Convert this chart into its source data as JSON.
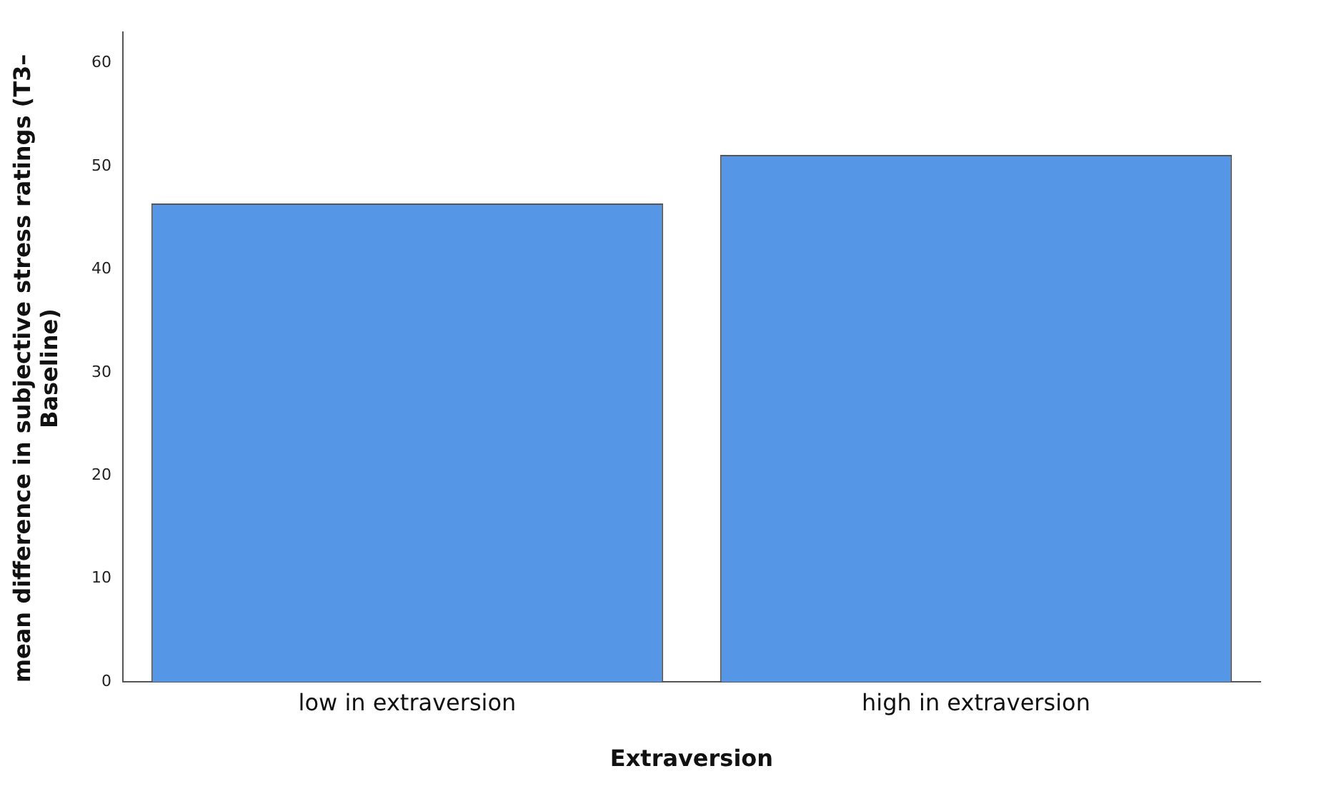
{
  "chart_data": {
    "type": "bar",
    "xlabel": "Extraversion",
    "ylabel": "mean difference in subjective stress ratings (T3–Baseline)",
    "categories": [
      "low in extraversion",
      "high in extraversion"
    ],
    "values": [
      46.4,
      51.1
    ],
    "color": "#5596e6",
    "ylim": [
      0,
      63
    ],
    "yticks": [
      0,
      10,
      20,
      30,
      40,
      50,
      60
    ],
    "grid": false,
    "legend": false
  }
}
